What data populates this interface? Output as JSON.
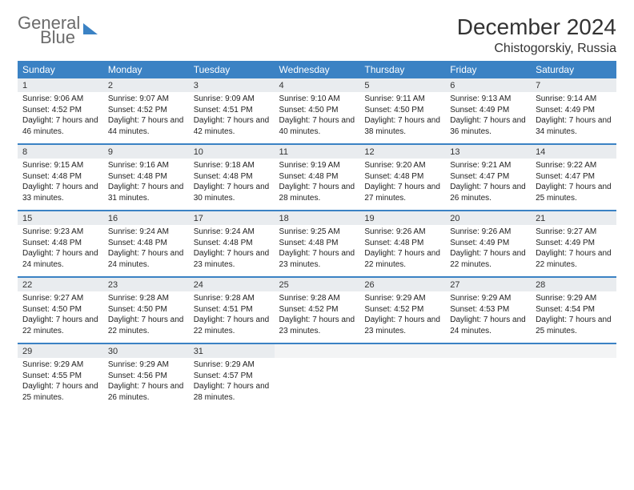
{
  "logo": {
    "line1": "General",
    "line2": "Blue"
  },
  "title": "December 2024",
  "location": "Chistogorskiy, Russia",
  "day_names": [
    "Sunday",
    "Monday",
    "Tuesday",
    "Wednesday",
    "Thursday",
    "Friday",
    "Saturday"
  ],
  "colors": {
    "header_bg": "#3b82c4",
    "header_text": "#ffffff",
    "daynum_bg": "#e9ecef",
    "rule": "#3b82c4",
    "logo_gray": "#6b6b6b",
    "logo_blue": "#3b82c4"
  },
  "weeks": [
    [
      {
        "n": "1",
        "sunrise": "9:06 AM",
        "sunset": "4:52 PM",
        "daylight": "7 hours and 46 minutes."
      },
      {
        "n": "2",
        "sunrise": "9:07 AM",
        "sunset": "4:52 PM",
        "daylight": "7 hours and 44 minutes."
      },
      {
        "n": "3",
        "sunrise": "9:09 AM",
        "sunset": "4:51 PM",
        "daylight": "7 hours and 42 minutes."
      },
      {
        "n": "4",
        "sunrise": "9:10 AM",
        "sunset": "4:50 PM",
        "daylight": "7 hours and 40 minutes."
      },
      {
        "n": "5",
        "sunrise": "9:11 AM",
        "sunset": "4:50 PM",
        "daylight": "7 hours and 38 minutes."
      },
      {
        "n": "6",
        "sunrise": "9:13 AM",
        "sunset": "4:49 PM",
        "daylight": "7 hours and 36 minutes."
      },
      {
        "n": "7",
        "sunrise": "9:14 AM",
        "sunset": "4:49 PM",
        "daylight": "7 hours and 34 minutes."
      }
    ],
    [
      {
        "n": "8",
        "sunrise": "9:15 AM",
        "sunset": "4:48 PM",
        "daylight": "7 hours and 33 minutes."
      },
      {
        "n": "9",
        "sunrise": "9:16 AM",
        "sunset": "4:48 PM",
        "daylight": "7 hours and 31 minutes."
      },
      {
        "n": "10",
        "sunrise": "9:18 AM",
        "sunset": "4:48 PM",
        "daylight": "7 hours and 30 minutes."
      },
      {
        "n": "11",
        "sunrise": "9:19 AM",
        "sunset": "4:48 PM",
        "daylight": "7 hours and 28 minutes."
      },
      {
        "n": "12",
        "sunrise": "9:20 AM",
        "sunset": "4:48 PM",
        "daylight": "7 hours and 27 minutes."
      },
      {
        "n": "13",
        "sunrise": "9:21 AM",
        "sunset": "4:47 PM",
        "daylight": "7 hours and 26 minutes."
      },
      {
        "n": "14",
        "sunrise": "9:22 AM",
        "sunset": "4:47 PM",
        "daylight": "7 hours and 25 minutes."
      }
    ],
    [
      {
        "n": "15",
        "sunrise": "9:23 AM",
        "sunset": "4:48 PM",
        "daylight": "7 hours and 24 minutes."
      },
      {
        "n": "16",
        "sunrise": "9:24 AM",
        "sunset": "4:48 PM",
        "daylight": "7 hours and 24 minutes."
      },
      {
        "n": "17",
        "sunrise": "9:24 AM",
        "sunset": "4:48 PM",
        "daylight": "7 hours and 23 minutes."
      },
      {
        "n": "18",
        "sunrise": "9:25 AM",
        "sunset": "4:48 PM",
        "daylight": "7 hours and 23 minutes."
      },
      {
        "n": "19",
        "sunrise": "9:26 AM",
        "sunset": "4:48 PM",
        "daylight": "7 hours and 22 minutes."
      },
      {
        "n": "20",
        "sunrise": "9:26 AM",
        "sunset": "4:49 PM",
        "daylight": "7 hours and 22 minutes."
      },
      {
        "n": "21",
        "sunrise": "9:27 AM",
        "sunset": "4:49 PM",
        "daylight": "7 hours and 22 minutes."
      }
    ],
    [
      {
        "n": "22",
        "sunrise": "9:27 AM",
        "sunset": "4:50 PM",
        "daylight": "7 hours and 22 minutes."
      },
      {
        "n": "23",
        "sunrise": "9:28 AM",
        "sunset": "4:50 PM",
        "daylight": "7 hours and 22 minutes."
      },
      {
        "n": "24",
        "sunrise": "9:28 AM",
        "sunset": "4:51 PM",
        "daylight": "7 hours and 22 minutes."
      },
      {
        "n": "25",
        "sunrise": "9:28 AM",
        "sunset": "4:52 PM",
        "daylight": "7 hours and 23 minutes."
      },
      {
        "n": "26",
        "sunrise": "9:29 AM",
        "sunset": "4:52 PM",
        "daylight": "7 hours and 23 minutes."
      },
      {
        "n": "27",
        "sunrise": "9:29 AM",
        "sunset": "4:53 PM",
        "daylight": "7 hours and 24 minutes."
      },
      {
        "n": "28",
        "sunrise": "9:29 AM",
        "sunset": "4:54 PM",
        "daylight": "7 hours and 25 minutes."
      }
    ],
    [
      {
        "n": "29",
        "sunrise": "9:29 AM",
        "sunset": "4:55 PM",
        "daylight": "7 hours and 25 minutes."
      },
      {
        "n": "30",
        "sunrise": "9:29 AM",
        "sunset": "4:56 PM",
        "daylight": "7 hours and 26 minutes."
      },
      {
        "n": "31",
        "sunrise": "9:29 AM",
        "sunset": "4:57 PM",
        "daylight": "7 hours and 28 minutes."
      },
      null,
      null,
      null,
      null
    ]
  ],
  "labels": {
    "sunrise": "Sunrise:",
    "sunset": "Sunset:",
    "daylight": "Daylight:"
  }
}
